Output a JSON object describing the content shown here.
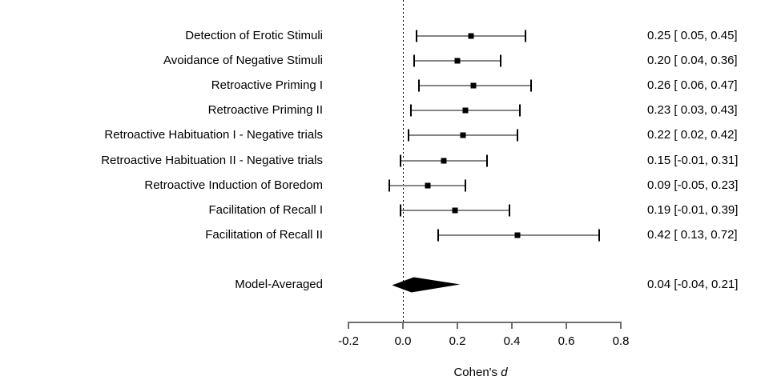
{
  "chart_data": {
    "type": "scatter",
    "variant": "forest-plot",
    "title": "",
    "xlabel": "Cohen's d",
    "xlabel_prefix": "Cohen's ",
    "xlabel_emphasis": "d",
    "ylabel": "",
    "xlim": [
      -0.2,
      0.8
    ],
    "grid": false,
    "legend": "none",
    "zero_reference_line": 0.0,
    "x_tick_values": [
      -0.2,
      0.0,
      0.2,
      0.4,
      0.6,
      0.8
    ],
    "x_tick_labels": [
      "-0.2",
      "0.0",
      "0.2",
      "0.4",
      "0.6",
      "0.8"
    ],
    "studies": [
      {
        "label": "Detection of Erotic Stimuli",
        "estimate": 0.25,
        "ci_lower": 0.05,
        "ci_upper": 0.45,
        "text": "0.25 [ 0.05, 0.45]"
      },
      {
        "label": "Avoidance of Negative Stimuli",
        "estimate": 0.2,
        "ci_lower": 0.04,
        "ci_upper": 0.36,
        "text": "0.20 [ 0.04, 0.36]"
      },
      {
        "label": "Retroactive Priming I",
        "estimate": 0.26,
        "ci_lower": 0.06,
        "ci_upper": 0.47,
        "text": "0.26 [ 0.06, 0.47]"
      },
      {
        "label": "Retroactive Priming II",
        "estimate": 0.23,
        "ci_lower": 0.03,
        "ci_upper": 0.43,
        "text": "0.23 [ 0.03, 0.43]"
      },
      {
        "label": "Retroactive Habituation I - Negative trials",
        "estimate": 0.22,
        "ci_lower": 0.02,
        "ci_upper": 0.42,
        "text": "0.22 [ 0.02, 0.42]"
      },
      {
        "label": "Retroactive Habituation II - Negative trials",
        "estimate": 0.15,
        "ci_lower": -0.01,
        "ci_upper": 0.31,
        "text": "0.15 [-0.01, 0.31]"
      },
      {
        "label": "Retroactive Induction of Boredom",
        "estimate": 0.09,
        "ci_lower": -0.05,
        "ci_upper": 0.23,
        "text": "0.09 [-0.05, 0.23]"
      },
      {
        "label": "Facilitation of Recall I",
        "estimate": 0.19,
        "ci_lower": -0.01,
        "ci_upper": 0.39,
        "text": "0.19 [-0.01, 0.39]"
      },
      {
        "label": "Facilitation of Recall II",
        "estimate": 0.42,
        "ci_lower": 0.13,
        "ci_upper": 0.72,
        "text": "0.42 [ 0.13, 0.72]"
      }
    ],
    "summary": {
      "label": "Model-Averaged",
      "estimate": 0.04,
      "ci_lower": -0.04,
      "ci_upper": 0.21,
      "text": "0.04 [-0.04, 0.21]"
    },
    "colors": {
      "ci_line": "#848484",
      "ci_cap": "#000000",
      "marker": "#000000",
      "diamond": "#000000",
      "axis": "#6e6e6e",
      "text": "#000000",
      "zero_line": "#000000",
      "background": "#ffffff"
    }
  }
}
